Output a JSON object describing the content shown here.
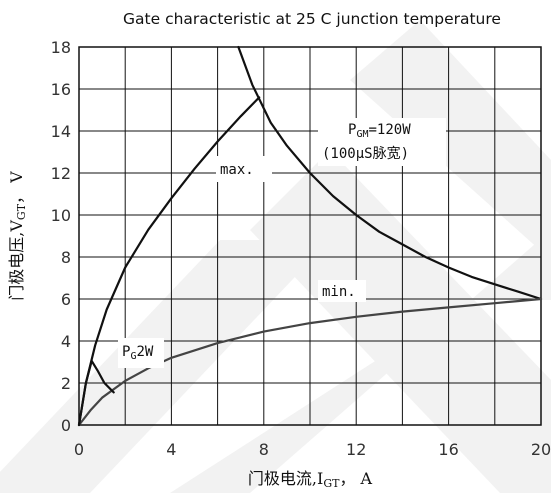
{
  "chart_data": {
    "type": "line",
    "title": "Gate characteristic at 25 C junction temperature",
    "xlabel": {
      "prefix": "门极电流,I",
      "sub": "GT",
      "suffix": "， A"
    },
    "ylabel": {
      "prefix": "门极电压,V",
      "sub": "GT",
      "suffix": "， V"
    },
    "xlim": [
      0,
      20
    ],
    "ylim": [
      0,
      18
    ],
    "xticks": [
      0,
      4,
      8,
      12,
      16,
      20
    ],
    "yticks": [
      0,
      2,
      4,
      6,
      8,
      10,
      12,
      14,
      16,
      18
    ],
    "grid": true,
    "series": [
      {
        "name": "max.",
        "color": "#111111",
        "x": [
          0,
          0.3,
          0.7,
          1.2,
          2,
          3,
          4,
          5,
          6,
          7,
          7.8
        ],
        "y": [
          0,
          2,
          3.8,
          5.5,
          7.5,
          9.3,
          10.8,
          12.2,
          13.5,
          14.7,
          15.6
        ]
      },
      {
        "name": "P_GM=120W",
        "color": "#111111",
        "x": [
          6.9,
          7.5,
          8.3,
          9,
          10,
          11,
          12,
          13,
          14,
          15,
          16,
          17,
          18,
          19,
          20
        ],
        "y": [
          18,
          16.2,
          14.4,
          13.3,
          12,
          10.9,
          10,
          9.2,
          8.6,
          8,
          7.5,
          7.05,
          6.7,
          6.35,
          6
        ]
      },
      {
        "name": "min.",
        "color": "#444444",
        "x": [
          0,
          0.5,
          1,
          2,
          3,
          4,
          6,
          8,
          10,
          12,
          14,
          16,
          18,
          20
        ],
        "y": [
          0,
          0.7,
          1.3,
          2.1,
          2.7,
          3.2,
          3.9,
          4.45,
          4.85,
          5.15,
          5.4,
          5.6,
          5.8,
          6
        ]
      },
      {
        "name": "P_G2W",
        "color": "#111111",
        "x": [
          0,
          0.3,
          0.55,
          0.8,
          1.1,
          1.5
        ],
        "y": [
          0,
          2,
          3.05,
          2.6,
          2.0,
          1.55
        ]
      }
    ],
    "annotations": {
      "pgm": {
        "main": "P",
        "sub": "GM",
        "rest": "=120W"
      },
      "pgm_note": "(100μS脉宽)",
      "max": "max.",
      "min": "min.",
      "pg": {
        "main": "P",
        "sub": "G",
        "rest": "2W"
      }
    }
  }
}
